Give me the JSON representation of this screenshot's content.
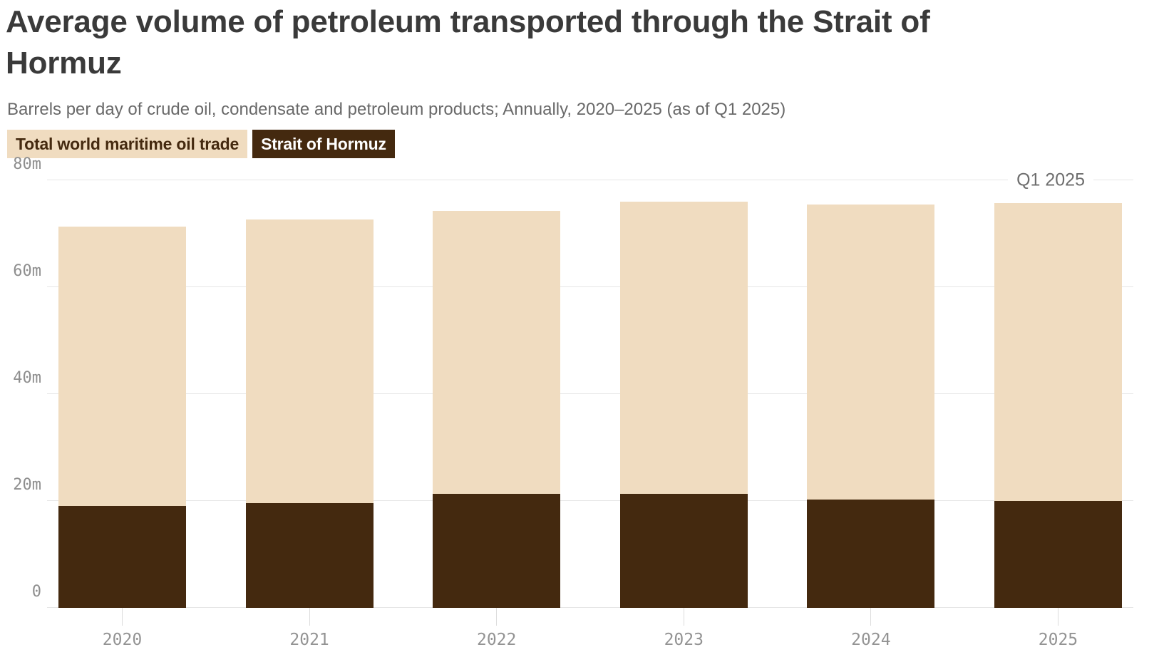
{
  "header": {
    "title": "Average volume of petroleum transported through the Strait of Hormuz",
    "subtitle": "Barrels per day of crude oil, condensate and petroleum products; Annually, 2020–2025 (as of Q1 2025)"
  },
  "legend": [
    {
      "label": "Total world maritime oil trade",
      "bg": "#f0dcc0",
      "fg": "#44290f"
    },
    {
      "label": "Strait of Hormuz",
      "bg": "#44290f",
      "fg": "#ffffff"
    }
  ],
  "colors": {
    "total_fill": "#f0dcc0",
    "hormuz_fill": "#44290f",
    "gridline": "#e6e6e6",
    "axis_text": "#8e8e8e",
    "annotation_text": "#6e6e6e"
  },
  "chart_data": {
    "type": "bar",
    "stacked_overlay": true,
    "title": "Average volume of petroleum transported through the Strait of Hormuz",
    "subtitle": "Barrels per day of crude oil, condensate and petroleum products; Annually, 2020–2025 (as of Q1 2025)",
    "unit": "million barrels per day",
    "categories": [
      "2020",
      "2021",
      "2022",
      "2023",
      "2024",
      "2025"
    ],
    "series": [
      {
        "name": "Total world maritime oil trade",
        "color": "#f0dcc0",
        "values": [
          71.4,
          72.7,
          74.3,
          76.0,
          75.5,
          75.8
        ]
      },
      {
        "name": "Strait of Hormuz",
        "color": "#44290f",
        "values": [
          19.1,
          19.6,
          21.4,
          21.3,
          20.3,
          20.0
        ]
      }
    ],
    "xlabel": "",
    "ylabel": "",
    "ylim": [
      0,
      80
    ],
    "yticks": [
      {
        "value": 0,
        "label": "0"
      },
      {
        "value": 20,
        "label": "20m"
      },
      {
        "value": 40,
        "label": "40m"
      },
      {
        "value": 60,
        "label": "60m"
      },
      {
        "value": 80,
        "label": "80m"
      }
    ],
    "grid": true,
    "legend_position": "top-left",
    "annotation": {
      "label": "Q1 2025",
      "x": "2025",
      "y": 80
    }
  }
}
